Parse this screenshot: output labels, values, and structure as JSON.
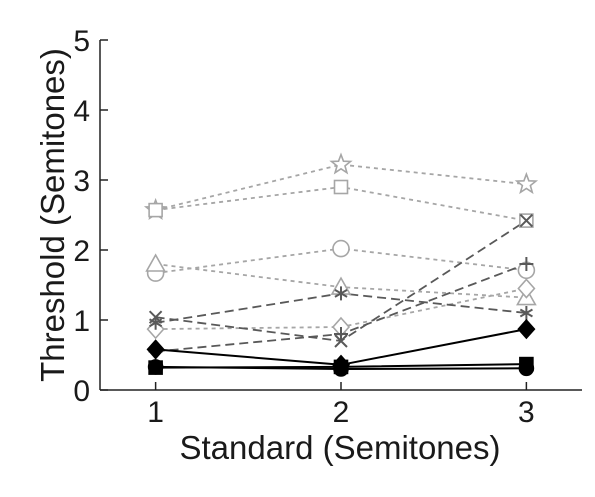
{
  "chart_data": {
    "type": "line",
    "xlabel": "Standard (Semitones)",
    "ylabel": "Threshold (Semitones)",
    "x": [
      1,
      2,
      3
    ],
    "xlim": [
      0.7,
      3.3
    ],
    "ylim": [
      0,
      5
    ],
    "xticks": [
      1,
      2,
      3
    ],
    "yticks": [
      0,
      1,
      2,
      3,
      4,
      5
    ],
    "grid": false,
    "series": [
      {
        "values": [
          2.57,
          3.22,
          2.94
        ],
        "marker": "star",
        "color": "#a6a6a6",
        "dash": "dotted"
      },
      {
        "values": [
          2.57,
          2.9,
          2.42
        ],
        "marker": "square-open",
        "color": "#a6a6a6",
        "dash": "dotted"
      },
      {
        "values": [
          1.67,
          2.02,
          1.71
        ],
        "marker": "circle-open",
        "color": "#a6a6a6",
        "dash": "dotted"
      },
      {
        "values": [
          1.8,
          1.47,
          1.32
        ],
        "marker": "triangle-open",
        "color": "#a6a6a6",
        "dash": "dotted"
      },
      {
        "values": [
          0.87,
          0.9,
          1.45
        ],
        "marker": "diamond-open",
        "color": "#a6a6a6",
        "dash": "dotted"
      },
      {
        "values": [
          1.04,
          0.7,
          2.42
        ],
        "marker": "x",
        "color": "#595959",
        "dash": "dashed"
      },
      {
        "values": [
          0.96,
          1.38,
          1.1
        ],
        "marker": "asterisk",
        "color": "#595959",
        "dash": "dashed"
      },
      {
        "values": [
          0.55,
          0.8,
          1.8
        ],
        "marker": "plus",
        "color": "#595959",
        "dash": "dashed"
      },
      {
        "values": [
          0.58,
          0.36,
          0.87
        ],
        "marker": "diamond-filled",
        "color": "#000000",
        "dash": "solid"
      },
      {
        "values": [
          0.32,
          0.33,
          0.37
        ],
        "marker": "square-filled",
        "color": "#000000",
        "dash": "solid"
      },
      {
        "values": [
          0.33,
          0.3,
          0.31
        ],
        "marker": "circle-filled",
        "color": "#000000",
        "dash": "solid"
      }
    ]
  }
}
